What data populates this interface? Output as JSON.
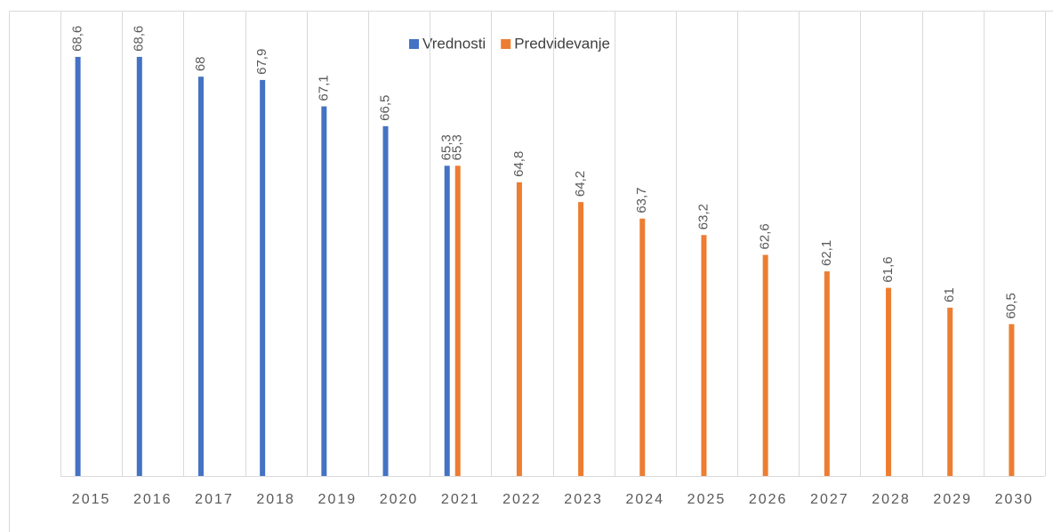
{
  "chart_data": {
    "type": "bar",
    "categories": [
      "2015",
      "2016",
      "2017",
      "2018",
      "2019",
      "2020",
      "2021",
      "2022",
      "2023",
      "2024",
      "2025",
      "2026",
      "2027",
      "2028",
      "2029",
      "2030"
    ],
    "series": [
      {
        "name": "Vrednosti",
        "color": "#4472c4",
        "values": [
          68.6,
          68.6,
          68,
          67.9,
          67.1,
          66.5,
          65.3,
          null,
          null,
          null,
          null,
          null,
          null,
          null,
          null,
          null
        ],
        "value_labels": [
          "68,6",
          "68,6",
          "68",
          "67,9",
          "67,1",
          "66,5",
          "65,3",
          null,
          null,
          null,
          null,
          null,
          null,
          null,
          null,
          null
        ]
      },
      {
        "name": "Predvidevanje",
        "color": "#ed7d31",
        "values": [
          null,
          null,
          null,
          null,
          null,
          null,
          65.3,
          64.8,
          64.2,
          63.7,
          63.2,
          62.6,
          62.1,
          61.6,
          61,
          60.5
        ],
        "value_labels": [
          null,
          null,
          null,
          null,
          null,
          null,
          "65,3",
          "64,8",
          "64,2",
          "63,7",
          "63,2",
          "62,6",
          "62,1",
          "61,6",
          "61",
          "60,5"
        ]
      }
    ],
    "ylim": [
      55.9,
      70
    ],
    "grid": true,
    "legend": "top"
  }
}
